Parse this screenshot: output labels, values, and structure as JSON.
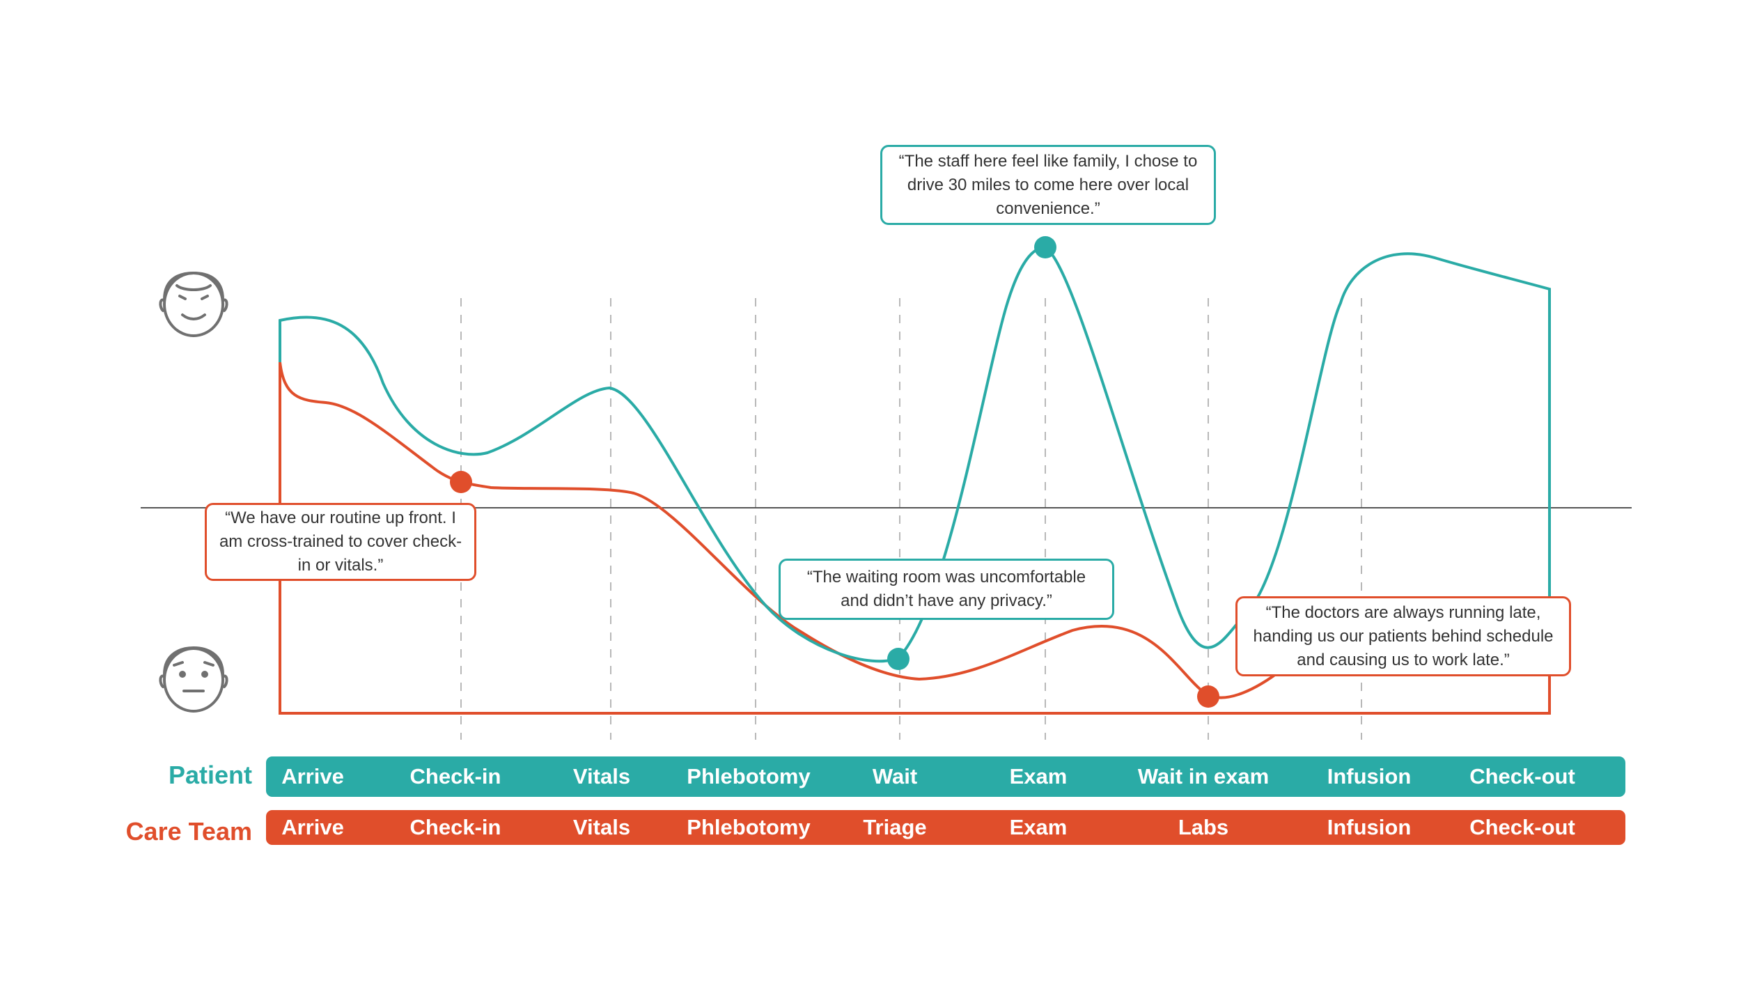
{
  "colors": {
    "patient": "#2aaba6",
    "care_team": "#e04e2b",
    "divider": "#b8b8b8",
    "face": "#707070"
  },
  "icons": {
    "top": "happy-face-icon",
    "bottom": "neutral-face-icon"
  },
  "lanes": {
    "patient": {
      "label": "Patient",
      "stages": [
        "Arrive",
        "Check-in",
        "Vitals",
        "Phlebotomy",
        "Wait",
        "Exam",
        "Wait in exam",
        "Infusion",
        "Check-out"
      ]
    },
    "care_team": {
      "label": "Care Team",
      "stages": [
        "Arrive",
        "Check-in",
        "Vitals",
        "Phlebotomy",
        "Triage",
        "Exam",
        "Labs",
        "Infusion",
        "Check-out"
      ]
    }
  },
  "quotes": {
    "care_team_checkin": "“We have our routine up front. I am cross-trained to cover check-in or vitals.”",
    "patient_exam": "“The staff here feel like family, I chose to drive 30 miles to come here over local convenience.”",
    "patient_wait": "“The waiting room was uncomfortable and didn’t have any privacy.”",
    "care_team_labs": "“The doctors are always running late, handing us our patients behind schedule and causing us to work late.”"
  }
}
